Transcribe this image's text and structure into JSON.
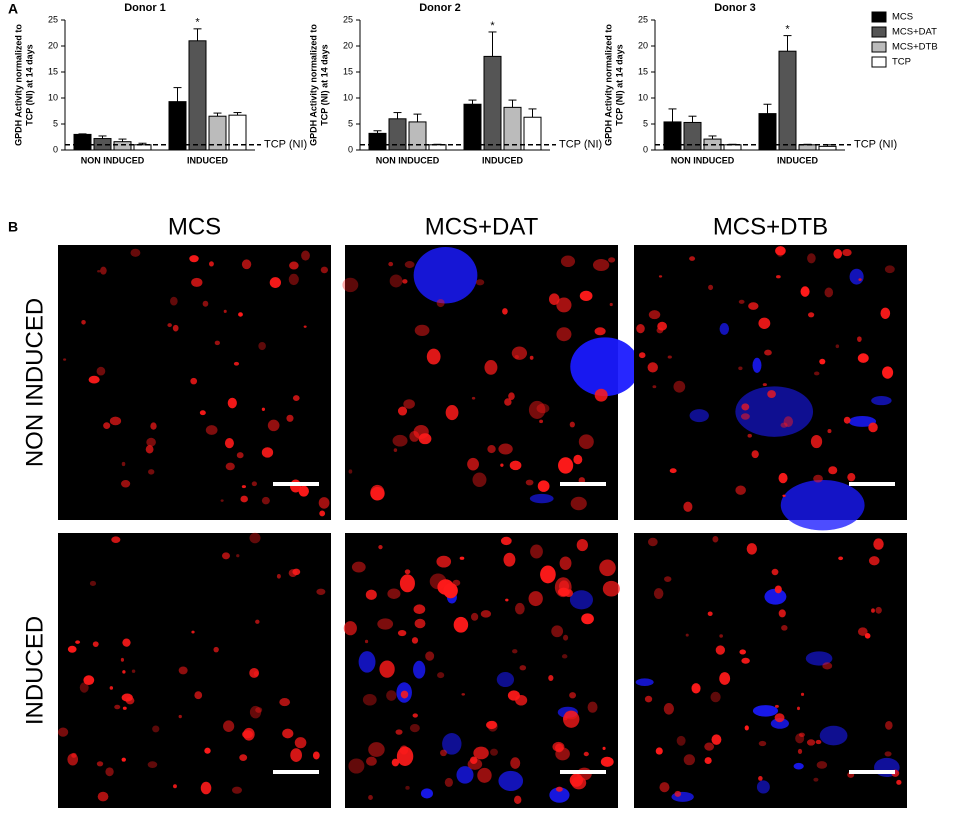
{
  "panels": {
    "a": "A",
    "b": "B"
  },
  "chart_data": [
    {
      "type": "bar",
      "title": "Donor 1",
      "ylabel": [
        "GPDH Activity normalized to",
        "TCP (NI) at 14 days"
      ],
      "categories": [
        "NON INDUCED",
        "INDUCED"
      ],
      "ylim": [
        0,
        25
      ],
      "yticks": [
        0,
        5,
        10,
        15,
        20,
        25
      ],
      "reference_line": {
        "value": 1,
        "label": "TCP (NI)"
      },
      "significance": "*",
      "legend": "right",
      "series": [
        {
          "name": "MCS",
          "color": "#000000",
          "values": [
            3.0,
            9.3
          ],
          "errors": [
            0.1,
            2.7
          ]
        },
        {
          "name": "MCS+DAT",
          "color": "#555555",
          "values": [
            2.2,
            21
          ],
          "errors": [
            0.5,
            2.3
          ]
        },
        {
          "name": "MCS+DTB",
          "color": "#bbbbbb",
          "values": [
            1.6,
            6.5
          ],
          "errors": [
            0.5,
            0.6
          ]
        },
        {
          "name": "TCP",
          "color": "#ffffff",
          "values": [
            1.0,
            6.7
          ],
          "errors": [
            0.3,
            0.5
          ]
        }
      ]
    },
    {
      "type": "bar",
      "title": "Donor 2",
      "ylabel": [
        "GPDH Activity normalized to",
        "TCP (NI) at 14 days"
      ],
      "categories": [
        "NON INDUCED",
        "INDUCED"
      ],
      "ylim": [
        0,
        25
      ],
      "yticks": [
        0,
        5,
        10,
        15,
        20,
        25
      ],
      "reference_line": {
        "value": 1,
        "label": "TCP (NI)"
      },
      "significance": "*",
      "series": [
        {
          "name": "MCS",
          "color": "#000000",
          "values": [
            3.2,
            8.8
          ],
          "errors": [
            0.5,
            0.8
          ]
        },
        {
          "name": "MCS+DAT",
          "color": "#555555",
          "values": [
            6.0,
            18
          ],
          "errors": [
            1.2,
            4.7
          ]
        },
        {
          "name": "MCS+DTB",
          "color": "#bbbbbb",
          "values": [
            5.4,
            8.2
          ],
          "errors": [
            1.5,
            1.4
          ]
        },
        {
          "name": "TCP",
          "color": "#ffffff",
          "values": [
            1.0,
            6.3
          ],
          "errors": [
            0.1,
            1.6
          ]
        }
      ]
    },
    {
      "type": "bar",
      "title": "Donor 3",
      "ylabel": [
        "GPDH Activity normalized to",
        "TCP (NI) at 14 days"
      ],
      "categories": [
        "NON INDUCED",
        "INDUCED"
      ],
      "ylim": [
        0,
        25
      ],
      "yticks": [
        0,
        5,
        10,
        15,
        20,
        25
      ],
      "reference_line": {
        "value": 1,
        "label": "TCP (NI)"
      },
      "significance": "*",
      "series": [
        {
          "name": "MCS",
          "color": "#000000",
          "values": [
            5.4,
            7.0
          ],
          "errors": [
            2.5,
            1.8
          ]
        },
        {
          "name": "MCS+DAT",
          "color": "#555555",
          "values": [
            5.3,
            19
          ],
          "errors": [
            1.2,
            3.0
          ]
        },
        {
          "name": "MCS+DTB",
          "color": "#bbbbbb",
          "values": [
            2.1,
            1.0
          ],
          "errors": [
            0.6,
            0.1
          ]
        },
        {
          "name": "TCP",
          "color": "#ffffff",
          "values": [
            1.0,
            0.7
          ],
          "errors": [
            0.1,
            0.3
          ]
        }
      ]
    }
  ],
  "images": {
    "columns": [
      "MCS",
      "MCS+DAT",
      "MCS+DTB"
    ],
    "rows": [
      "NON INDUCED",
      "INDUCED"
    ]
  }
}
